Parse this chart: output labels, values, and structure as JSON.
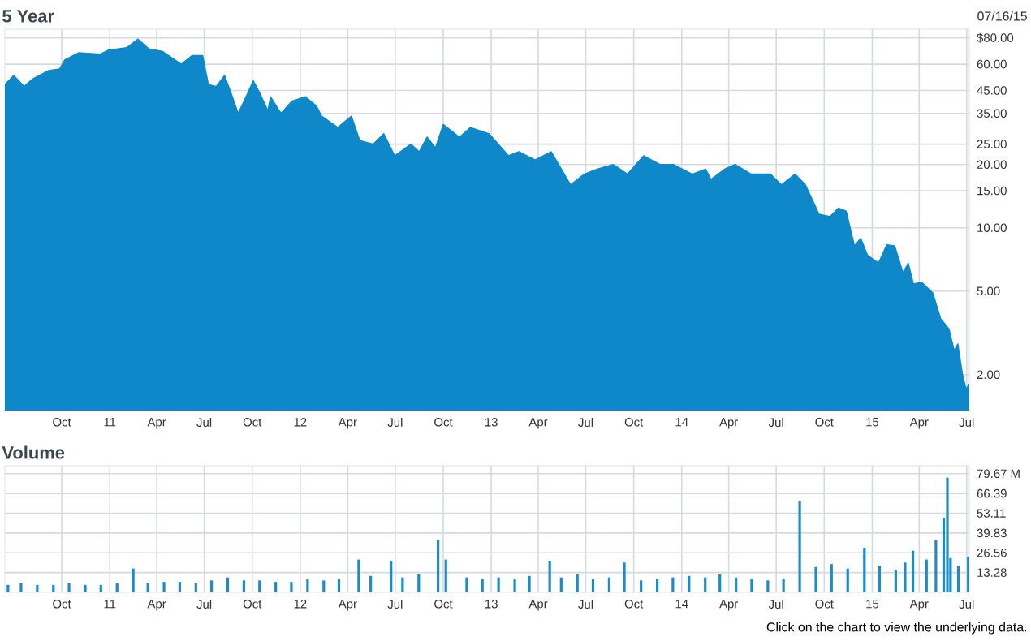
{
  "chart_data": [
    {
      "type": "area",
      "title": "5 Year",
      "subtitle": "07/16/15",
      "log": "y",
      "grid": true,
      "xlim": [
        "2010-06-14",
        "2015-07-06"
      ],
      "ylim": [
        1.35,
        88
      ],
      "xticks": [
        {
          "value": "2010-10-01",
          "label": "Oct"
        },
        {
          "value": "2011-01-01",
          "label": "11"
        },
        {
          "value": "2011-04-01",
          "label": "Apr"
        },
        {
          "value": "2011-07-01",
          "label": "Jul"
        },
        {
          "value": "2011-10-01",
          "label": "Oct"
        },
        {
          "value": "2012-01-01",
          "label": "12"
        },
        {
          "value": "2012-04-01",
          "label": "Apr"
        },
        {
          "value": "2012-07-01",
          "label": "Jul"
        },
        {
          "value": "2012-10-01",
          "label": "Oct"
        },
        {
          "value": "2013-01-01",
          "label": "13"
        },
        {
          "value": "2013-04-01",
          "label": "Apr"
        },
        {
          "value": "2013-07-01",
          "label": "Jul"
        },
        {
          "value": "2013-10-01",
          "label": "Oct"
        },
        {
          "value": "2014-01-01",
          "label": "14"
        },
        {
          "value": "2014-04-01",
          "label": "Apr"
        },
        {
          "value": "2014-07-01",
          "label": "Jul"
        },
        {
          "value": "2014-10-01",
          "label": "Oct"
        },
        {
          "value": "2015-01-01",
          "label": "15"
        },
        {
          "value": "2015-04-01",
          "label": "Apr"
        },
        {
          "value": "2015-07-01",
          "label": "Jul"
        }
      ],
      "yticks": [
        {
          "value": 2,
          "label": "2.00"
        },
        {
          "value": 5,
          "label": "5.00"
        },
        {
          "value": 10,
          "label": "10.00"
        },
        {
          "value": 15,
          "label": "15.00"
        },
        {
          "value": 20,
          "label": "20.00"
        },
        {
          "value": 25,
          "label": "25.00"
        },
        {
          "value": 35,
          "label": "35.00"
        },
        {
          "value": 45,
          "label": "45.00"
        },
        {
          "value": 60,
          "label": "60.00"
        },
        {
          "value": 80,
          "label": "$80.00"
        }
      ],
      "x": [
        "2010-06-14",
        "2010-07-01",
        "2010-07-21",
        "2010-08-06",
        "2010-09-06",
        "2010-09-27",
        "2010-10-07",
        "2010-11-02",
        "2010-12-14",
        "2010-12-29",
        "2011-02-03",
        "2011-02-24",
        "2011-03-17",
        "2011-04-12",
        "2011-05-18",
        "2011-06-08",
        "2011-06-28",
        "2011-07-09",
        "2011-07-24",
        "2011-08-09",
        "2011-08-24",
        "2011-09-04",
        "2011-09-19",
        "2011-10-03",
        "2011-10-15",
        "2011-10-31",
        "2011-11-05",
        "2011-11-25",
        "2011-12-16",
        "2012-01-11",
        "2012-02-01",
        "2012-02-11",
        "2012-03-13",
        "2012-04-08",
        "2012-04-24",
        "2012-05-20",
        "2012-06-09",
        "2012-06-30",
        "2012-07-31",
        "2012-08-16",
        "2012-08-31",
        "2012-09-16",
        "2012-10-01",
        "2012-11-01",
        "2012-11-22",
        "2012-12-28",
        "2013-02-03",
        "2013-02-23",
        "2013-03-26",
        "2013-04-26",
        "2013-06-02",
        "2013-06-28",
        "2013-07-23",
        "2013-08-23",
        "2013-09-19",
        "2013-10-20",
        "2013-11-20",
        "2013-12-16",
        "2014-01-21",
        "2014-02-16",
        "2014-02-26",
        "2014-03-24",
        "2014-04-13",
        "2014-05-14",
        "2014-06-20",
        "2014-07-11",
        "2014-08-06",
        "2014-08-26",
        "2014-09-21",
        "2014-10-12",
        "2014-10-28",
        "2014-11-12",
        "2014-11-28",
        "2014-12-10",
        "2014-12-23",
        "2015-01-13",
        "2015-01-29",
        "2015-02-13",
        "2015-03-01",
        "2015-03-11",
        "2015-03-21",
        "2015-04-06",
        "2015-04-27",
        "2015-05-12",
        "2015-05-28",
        "2015-06-07",
        "2015-06-14",
        "2015-06-23",
        "2015-06-30",
        "2015-07-05"
      ],
      "series": [
        {
          "color": "#0e88c9",
          "values": [
            48,
            53,
            47,
            51,
            56,
            57,
            63,
            68,
            67,
            70,
            72,
            79,
            71,
            69,
            60,
            66,
            66,
            48,
            47,
            53,
            42,
            35,
            42,
            50,
            44,
            36,
            42,
            35,
            40,
            42,
            38,
            34,
            30,
            34,
            26,
            25,
            28,
            22,
            25,
            23,
            27,
            24,
            31,
            27,
            30,
            28,
            22,
            23,
            21,
            23,
            16,
            18,
            19,
            20,
            18,
            22,
            20,
            20,
            18,
            19,
            17,
            19,
            20,
            18,
            18,
            16,
            18,
            16,
            11.6,
            11.3,
            12.4,
            12,
            8.2,
            8.9,
            7.4,
            6.8,
            8.3,
            8.2,
            6.1,
            6.8,
            5.4,
            5.5,
            4.9,
            3.7,
            3.3,
            2.6,
            2.8,
            2.0,
            1.7,
            1.8
          ]
        }
      ]
    },
    {
      "type": "bar",
      "title": "Volume",
      "annotations": [
        "Click on the chart to view the underlying data."
      ],
      "grid": true,
      "xlim": [
        "2010-06-14",
        "2015-07-06"
      ],
      "ylim": [
        0,
        85
      ],
      "xticks": [
        {
          "value": "2010-10-01",
          "label": "Oct"
        },
        {
          "value": "2011-01-01",
          "label": "11"
        },
        {
          "value": "2011-04-01",
          "label": "Apr"
        },
        {
          "value": "2011-07-01",
          "label": "Jul"
        },
        {
          "value": "2011-10-01",
          "label": "Oct"
        },
        {
          "value": "2012-01-01",
          "label": "12"
        },
        {
          "value": "2012-04-01",
          "label": "Apr"
        },
        {
          "value": "2012-07-01",
          "label": "Jul"
        },
        {
          "value": "2012-10-01",
          "label": "Oct"
        },
        {
          "value": "2013-01-01",
          "label": "13"
        },
        {
          "value": "2013-04-01",
          "label": "Apr"
        },
        {
          "value": "2013-07-01",
          "label": "Jul"
        },
        {
          "value": "2013-10-01",
          "label": "Oct"
        },
        {
          "value": "2014-01-01",
          "label": "14"
        },
        {
          "value": "2014-04-01",
          "label": "Apr"
        },
        {
          "value": "2014-07-01",
          "label": "Jul"
        },
        {
          "value": "2014-10-01",
          "label": "Oct"
        },
        {
          "value": "2015-01-01",
          "label": "15"
        },
        {
          "value": "2015-04-01",
          "label": "Apr"
        },
        {
          "value": "2015-07-01",
          "label": "Jul"
        }
      ],
      "yticks": [
        13.28,
        26.56,
        39.83,
        53.11,
        66.39,
        {
          "value": 79.67,
          "label": "79.67 M"
        }
      ],
      "x": [
        "2010-06-20",
        "2010-07-15",
        "2010-08-15",
        "2010-09-15",
        "2010-10-15",
        "2010-11-15",
        "2010-12-15",
        "2011-01-15",
        "2011-02-15",
        "2011-03-15",
        "2011-04-15",
        "2011-05-15",
        "2011-06-15",
        "2011-07-15",
        "2011-08-15",
        "2011-09-15",
        "2011-10-15",
        "2011-11-15",
        "2011-12-15",
        "2012-01-15",
        "2012-02-15",
        "2012-03-15",
        "2012-04-22",
        "2012-05-15",
        "2012-06-23",
        "2012-07-15",
        "2012-08-15",
        "2012-09-21",
        "2012-10-06",
        "2012-11-15",
        "2012-12-15",
        "2013-01-15",
        "2013-02-15",
        "2013-03-15",
        "2013-04-23",
        "2013-05-15",
        "2013-06-15",
        "2013-07-15",
        "2013-08-15",
        "2013-09-13",
        "2013-10-15",
        "2013-11-15",
        "2013-12-15",
        "2014-01-15",
        "2014-02-15",
        "2014-03-15",
        "2014-04-15",
        "2014-05-15",
        "2014-06-15",
        "2014-07-15",
        "2014-08-15",
        "2014-09-15",
        "2014-10-15",
        "2014-11-15",
        "2014-12-17",
        "2015-01-15",
        "2015-02-15",
        "2015-03-05",
        "2015-03-20",
        "2015-04-15",
        "2015-05-03",
        "2015-05-18",
        "2015-05-25",
        "2015-05-31",
        "2015-06-15",
        "2015-07-04"
      ],
      "series": [
        {
          "color": "#1a8ccc",
          "values": [
            5,
            6,
            5,
            5,
            6,
            5,
            5,
            6,
            16,
            6,
            7,
            7,
            6,
            8,
            10,
            8,
            8,
            7,
            7,
            9,
            8,
            9,
            22,
            11,
            21,
            10,
            12,
            35,
            22,
            10,
            9,
            10,
            9,
            11,
            21,
            10,
            12,
            9,
            10,
            20,
            8,
            9,
            10,
            11,
            10,
            12,
            10,
            9,
            8,
            9,
            61,
            17,
            19,
            16,
            30,
            18,
            15,
            20,
            28,
            22,
            35,
            50,
            77,
            23,
            18,
            24
          ]
        }
      ]
    }
  ]
}
